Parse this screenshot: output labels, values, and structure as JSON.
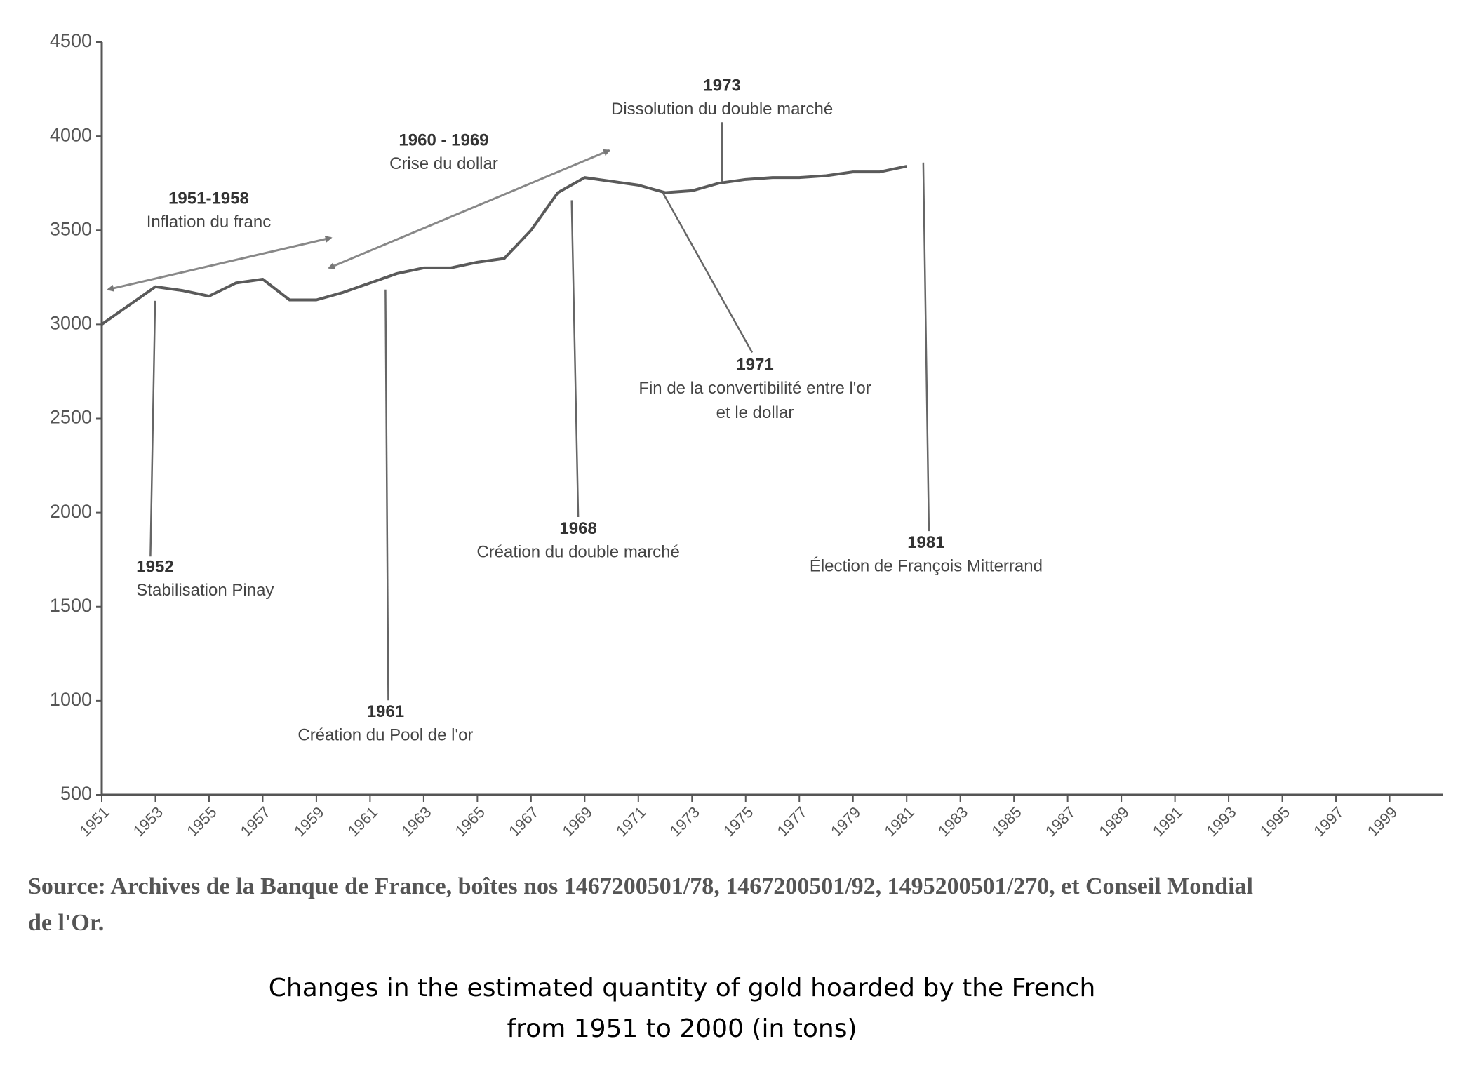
{
  "chart_data": {
    "type": "line",
    "x": [
      1951,
      1952,
      1953,
      1954,
      1955,
      1956,
      1957,
      1958,
      1959,
      1960,
      1961,
      1962,
      1963,
      1964,
      1965,
      1966,
      1967,
      1968,
      1969,
      1970,
      1971,
      1972,
      1973,
      1974,
      1975,
      1976,
      1977,
      1978,
      1979,
      1980,
      1981
    ],
    "values": [
      3000,
      3100,
      3200,
      3180,
      3150,
      3220,
      3240,
      3130,
      3130,
      3170,
      3220,
      3270,
      3300,
      3300,
      3330,
      3350,
      3500,
      3700,
      3780,
      3760,
      3740,
      3700,
      3710,
      3750,
      3770,
      3780,
      3780,
      3790,
      3810,
      3810,
      3840
    ],
    "color": "#5a5a5a",
    "xlim": [
      1951,
      2001
    ],
    "xticks": [
      1951,
      1953,
      1955,
      1957,
      1959,
      1961,
      1963,
      1965,
      1967,
      1969,
      1971,
      1973,
      1975,
      1977,
      1979,
      1981,
      1983,
      1985,
      1987,
      1989,
      1991,
      1993,
      1995,
      1997,
      1999
    ],
    "ylim": [
      500,
      4500
    ],
    "yticks": [
      500,
      1000,
      1500,
      2000,
      2500,
      3000,
      3500,
      4000,
      4500
    ],
    "annotations": [
      {
        "label": "1951-1958",
        "text": [
          "Inflation du franc"
        ]
      },
      {
        "label": "1960 - 1969",
        "text": [
          "Crise du dollar"
        ]
      },
      {
        "label": "1973",
        "text": [
          "Dissolution du double marché"
        ]
      },
      {
        "label": "1952",
        "text": [
          "Stabilisation Pinay"
        ]
      },
      {
        "label": "1961",
        "text": [
          "Création du Pool de l'or"
        ]
      },
      {
        "label": "1968",
        "text": [
          "Création du double marché"
        ]
      },
      {
        "label": "1971",
        "text": [
          "Fin de la convertibilité entre l'or",
          "et le dollar"
        ]
      },
      {
        "label": "1981",
        "text": [
          "Élection de François Mitterrand"
        ]
      }
    ],
    "source": [
      "Source: Archives de la Banque de France, boîtes nos 1467200501/78, 1467200501/92, 1495200501/270, et Conseil Mondial",
      "de l'Or."
    ],
    "caption": [
      "Changes in the estimated quantity of gold hoarded by the French",
      "from 1951 to 2000 (in tons)"
    ]
  }
}
